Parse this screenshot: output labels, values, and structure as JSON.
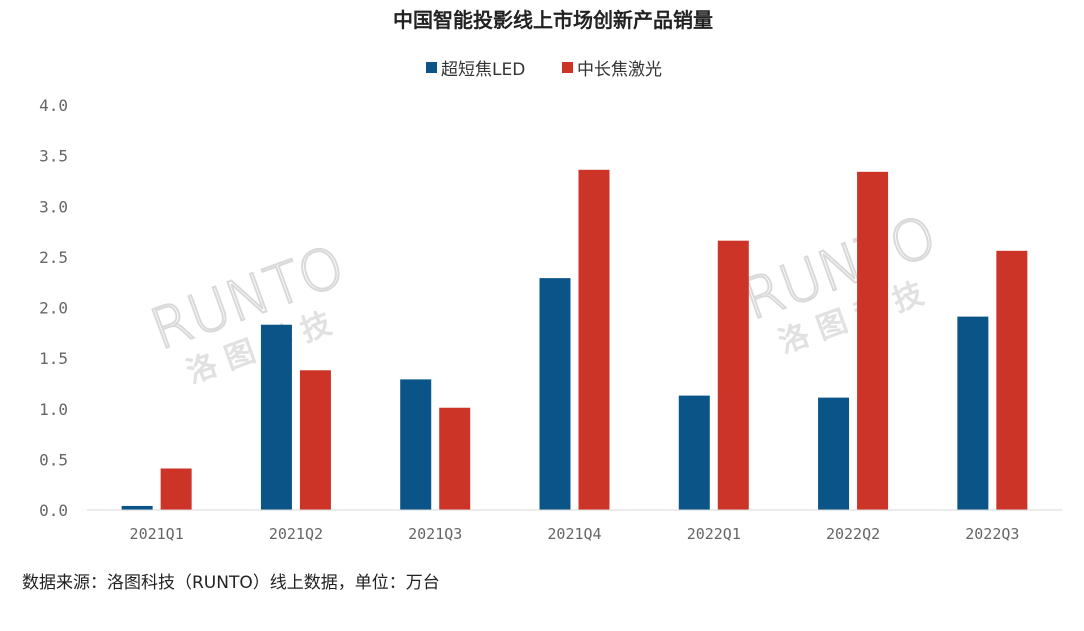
{
  "chart_data": {
    "type": "bar",
    "title": "中国智能投影线上市场创新产品销量",
    "categories": [
      "2021Q1",
      "2021Q2",
      "2021Q3",
      "2021Q4",
      "2022Q1",
      "2022Q2",
      "2022Q3"
    ],
    "series": [
      {
        "name": "超短焦LED",
        "color": "#0a5488",
        "values": [
          0.04,
          1.83,
          1.29,
          2.29,
          1.13,
          1.11,
          1.91
        ]
      },
      {
        "name": "中长焦激光",
        "color": "#cc3427",
        "values": [
          0.41,
          1.38,
          1.01,
          3.36,
          2.66,
          3.34,
          2.56
        ]
      }
    ],
    "ylim": [
      0,
      4.0
    ],
    "yticks": [
      "4.0",
      "3.5",
      "3.0",
      "2.5",
      "2.0",
      "1.5",
      "1.0",
      "0.5",
      "0.0"
    ],
    "legend_position": "top-center",
    "grid": false
  },
  "source_note": "数据来源：洛图科技（RUNTO）线上数据，单位：万台",
  "watermark": {
    "latin": "RUNTO",
    "chinese": "洛 图 科 技"
  }
}
